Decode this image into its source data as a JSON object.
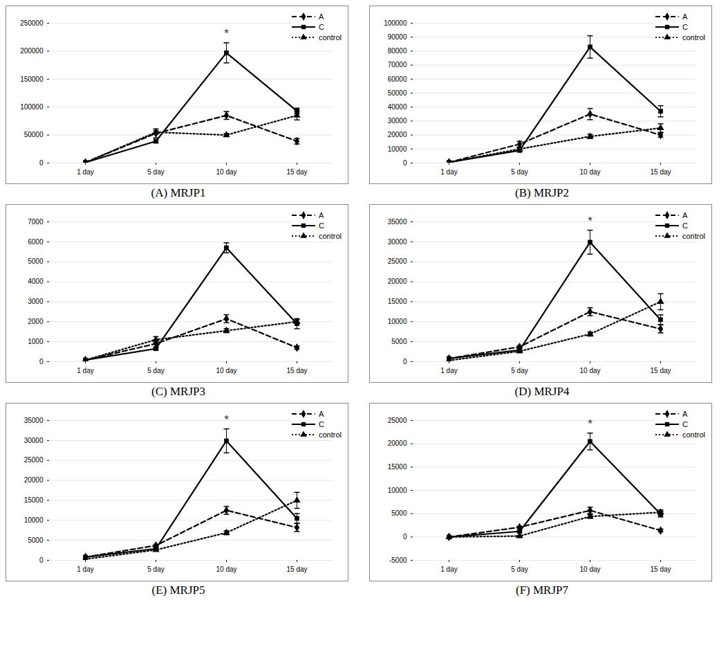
{
  "chart_data": [
    {
      "type": "line",
      "title": "(A) MRJP1",
      "x": [
        "1 day",
        "5 day",
        "10 day",
        "15 day"
      ],
      "ylim": [
        0,
        250000
      ],
      "yticks": [
        0,
        50000,
        100000,
        150000,
        200000,
        250000
      ],
      "grid": true,
      "legend": "top-right",
      "series": [
        {
          "name": "A",
          "color": "#000000",
          "marker": "diamond",
          "line_style": "dashed",
          "values": [
            1000,
            53000,
            85000,
            39000
          ],
          "error": [
            0,
            8000,
            7000,
            5000
          ]
        },
        {
          "name": "C",
          "color": "#000000",
          "marker": "square",
          "line_style": "solid",
          "values": [
            1000,
            39000,
            197000,
            93000
          ],
          "error": [
            0,
            3000,
            18000,
            5000
          ]
        },
        {
          "name": "control",
          "color": "#000000",
          "marker": "triangle",
          "line_style": "dotted",
          "values": [
            1000,
            55000,
            50000,
            85000
          ],
          "error": [
            0,
            3000,
            3000,
            8000
          ]
        }
      ],
      "annotations": [
        {
          "x": "10 day",
          "series": "C",
          "text": "*"
        }
      ]
    },
    {
      "type": "line",
      "title": "(B) MRJP2",
      "x": [
        "1 day",
        "5 day",
        "10 day",
        "15 day"
      ],
      "ylim": [
        0,
        100000
      ],
      "yticks": [
        0,
        10000,
        20000,
        30000,
        40000,
        50000,
        60000,
        70000,
        80000,
        90000,
        100000
      ],
      "grid": true,
      "legend": "top-right",
      "series": [
        {
          "name": "A",
          "color": "#000000",
          "marker": "diamond",
          "line_style": "dashed",
          "values": [
            500,
            13500,
            35000,
            20000
          ],
          "error": [
            0,
            2000,
            4000,
            1500
          ]
        },
        {
          "name": "C",
          "color": "#000000",
          "marker": "square",
          "line_style": "solid",
          "values": [
            500,
            9000,
            83000,
            37000
          ],
          "error": [
            0,
            1000,
            8000,
            4000
          ]
        },
        {
          "name": "control",
          "color": "#000000",
          "marker": "triangle",
          "line_style": "dotted",
          "values": [
            500,
            10000,
            19000,
            25000
          ],
          "error": [
            0,
            1000,
            1500,
            3000
          ]
        }
      ],
      "annotations": []
    },
    {
      "type": "line",
      "title": "(C) MRJP3",
      "x": [
        "1 day",
        "5 day",
        "10 day",
        "15 day"
      ],
      "ylim": [
        0,
        7000
      ],
      "yticks": [
        0,
        1000,
        2000,
        3000,
        4000,
        5000,
        6000,
        7000
      ],
      "grid": true,
      "legend": "top-right",
      "series": [
        {
          "name": "A",
          "color": "#000000",
          "marker": "diamond",
          "line_style": "dashed",
          "values": [
            80,
            900,
            2150,
            700
          ],
          "error": [
            0,
            200,
            200,
            80
          ]
        },
        {
          "name": "C",
          "color": "#000000",
          "marker": "square",
          "line_style": "solid",
          "values": [
            80,
            650,
            5700,
            1900
          ],
          "error": [
            0,
            80,
            250,
            250
          ]
        },
        {
          "name": "control",
          "color": "#000000",
          "marker": "triangle",
          "line_style": "dotted",
          "values": [
            80,
            1100,
            1550,
            2000
          ],
          "error": [
            0,
            150,
            100,
            100
          ]
        }
      ],
      "annotations": []
    },
    {
      "type": "line",
      "title": "(D) MRJP4",
      "x": [
        "1 day",
        "5 day",
        "10 day",
        "15 day"
      ],
      "ylim": [
        0,
        35000
      ],
      "yticks": [
        0,
        5000,
        10000,
        15000,
        20000,
        25000,
        30000,
        35000
      ],
      "grid": true,
      "legend": "top-right",
      "series": [
        {
          "name": "A",
          "color": "#000000",
          "marker": "diamond",
          "line_style": "dashed",
          "values": [
            800,
            3700,
            12500,
            8200
          ],
          "error": [
            0,
            300,
            1000,
            1000
          ]
        },
        {
          "name": "C",
          "color": "#000000",
          "marker": "square",
          "line_style": "solid",
          "values": [
            800,
            2900,
            29900,
            10500
          ],
          "error": [
            0,
            300,
            3000,
            1200
          ]
        },
        {
          "name": "control",
          "color": "#000000",
          "marker": "triangle",
          "line_style": "dotted",
          "values": [
            300,
            2600,
            6900,
            15000
          ],
          "error": [
            0,
            200,
            500,
            2000
          ]
        }
      ],
      "annotations": [
        {
          "x": "10 day",
          "series": "C",
          "text": "*"
        }
      ]
    },
    {
      "type": "line",
      "title": "(E) MRJP5",
      "x": [
        "1 day",
        "5 day",
        "10 day",
        "15 day"
      ],
      "ylim": [
        0,
        35000
      ],
      "yticks": [
        0,
        5000,
        10000,
        15000,
        20000,
        25000,
        30000,
        35000
      ],
      "grid": true,
      "legend": "top-right",
      "series": [
        {
          "name": "A",
          "color": "#000000",
          "marker": "diamond",
          "line_style": "dashed",
          "values": [
            800,
            3700,
            12500,
            8200
          ],
          "error": [
            0,
            300,
            1000,
            1000
          ]
        },
        {
          "name": "C",
          "color": "#000000",
          "marker": "square",
          "line_style": "solid",
          "values": [
            800,
            2900,
            29900,
            10500
          ],
          "error": [
            0,
            300,
            3000,
            1200
          ]
        },
        {
          "name": "control",
          "color": "#000000",
          "marker": "triangle",
          "line_style": "dotted",
          "values": [
            300,
            2600,
            6900,
            15000
          ],
          "error": [
            0,
            200,
            500,
            2000
          ]
        }
      ],
      "annotations": [
        {
          "x": "10 day",
          "series": "C",
          "text": "*"
        }
      ]
    },
    {
      "type": "line",
      "title": "(F) MRJP7",
      "x": [
        "1 day",
        "5 day",
        "10 day",
        "15 day"
      ],
      "ylim": [
        -5000,
        25000
      ],
      "yticks": [
        -5000,
        0,
        5000,
        10000,
        15000,
        20000,
        25000
      ],
      "grid": true,
      "legend": "top-right",
      "series": [
        {
          "name": "A",
          "color": "#000000",
          "marker": "diamond",
          "line_style": "dashed",
          "values": [
            0,
            2100,
            5700,
            1400
          ],
          "error": [
            0,
            200,
            700,
            300
          ]
        },
        {
          "name": "C",
          "color": "#000000",
          "marker": "square",
          "line_style": "solid",
          "values": [
            0,
            1200,
            20500,
            4900
          ],
          "error": [
            0,
            200,
            1800,
            600
          ]
        },
        {
          "name": "control",
          "color": "#000000",
          "marker": "triangle",
          "line_style": "dotted",
          "values": [
            0,
            200,
            4400,
            5300
          ],
          "error": [
            0,
            100,
            400,
            500
          ]
        }
      ],
      "annotations": [
        {
          "x": "10 day",
          "series": "C",
          "text": "*"
        }
      ]
    }
  ]
}
